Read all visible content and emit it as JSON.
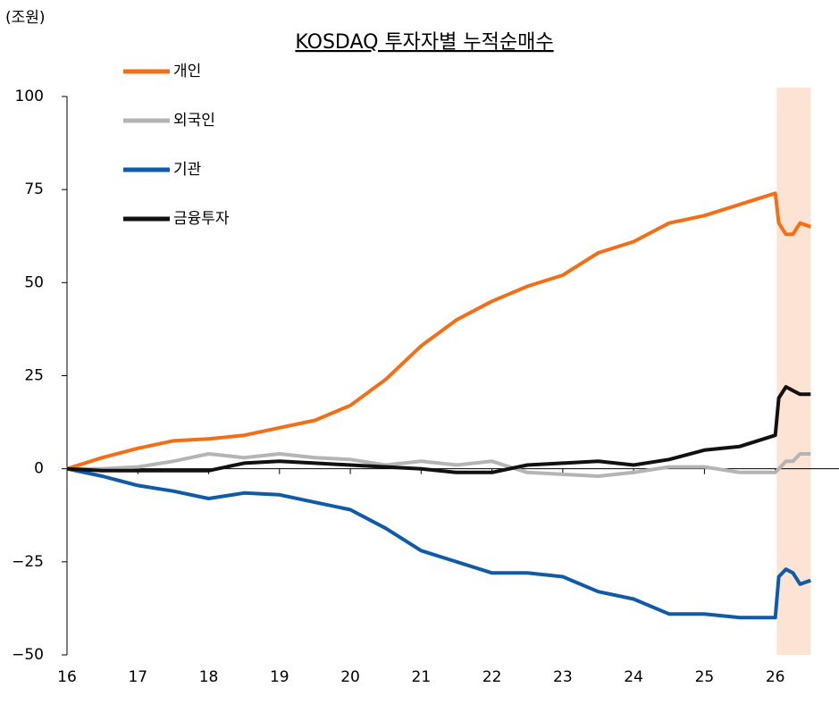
{
  "chart_data": {
    "type": "line",
    "title": "KOSDAQ 투자자별 누적순매수",
    "y_unit": "(조원)",
    "x": [
      16,
      16.5,
      17,
      17.5,
      18,
      18.5,
      19,
      19.5,
      20,
      20.5,
      21,
      21.5,
      22,
      22.5,
      23,
      23.5,
      24,
      24.5,
      25,
      25.5,
      26,
      26.05,
      26.15,
      26.25,
      26.35,
      26.5
    ],
    "series": [
      {
        "name": "개인",
        "color": "#f36f16",
        "values": [
          0,
          3,
          5.5,
          7.5,
          8,
          9,
          11,
          13,
          17,
          24,
          33,
          40,
          45,
          49,
          52,
          58,
          61,
          66,
          68,
          71,
          74,
          66,
          63,
          63,
          66,
          65
        ]
      },
      {
        "name": "외국인",
        "color": "#b4b4b4",
        "values": [
          0,
          0,
          0.5,
          2,
          4,
          3,
          4,
          3,
          2.5,
          1,
          2,
          1,
          2,
          -1,
          -1.5,
          -2,
          -1,
          0.5,
          0.5,
          -1,
          -1,
          0,
          2,
          2,
          4,
          4
        ]
      },
      {
        "name": "기관",
        "color": "#0f5ba8",
        "values": [
          0,
          -2,
          -4.5,
          -6,
          -8,
          -6.5,
          -7,
          -9,
          -11,
          -16,
          -22,
          -25,
          -28,
          -28,
          -29,
          -33,
          -35,
          -39,
          -39,
          -40,
          -40,
          -29,
          -27,
          -28,
          -31,
          -30
        ]
      },
      {
        "name": "금융투자",
        "color": "#111111",
        "values": [
          0,
          -0.5,
          -0.5,
          -0.5,
          -0.5,
          1.5,
          2,
          1.5,
          1,
          0.5,
          0,
          -1,
          -1,
          1,
          1.5,
          2,
          1,
          2.5,
          5,
          6,
          9,
          19,
          22,
          21,
          20,
          20
        ]
      }
    ],
    "xlim": [
      16,
      26.9
    ],
    "xticks": [
      16,
      17,
      18,
      19,
      20,
      21,
      22,
      23,
      24,
      25,
      26
    ],
    "ylim": [
      -50,
      100
    ],
    "yticks": [
      {
        "value": -50,
        "label": "−50"
      },
      {
        "value": -25,
        "label": "−25"
      },
      0,
      25,
      50,
      75,
      100
    ],
    "highlight_x": [
      26.02,
      26.5
    ],
    "highlight_color": "#fde3d3"
  }
}
